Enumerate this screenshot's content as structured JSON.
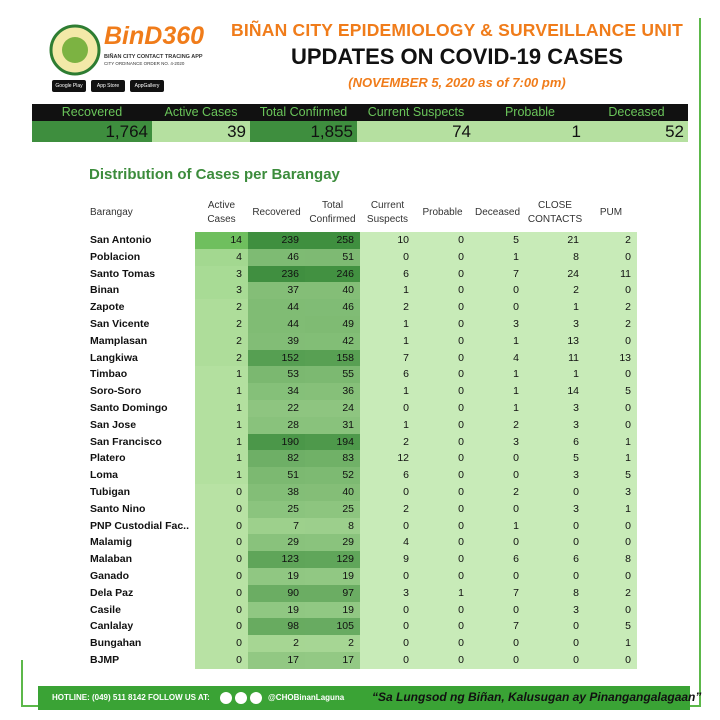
{
  "header": {
    "logo_text": "BinD360",
    "logo_subtitle": "BIÑAN CITY CONTACT TRACING APP",
    "logo_note": "CITY ORDINANCE ORDER NO. 4-2020",
    "badges": [
      "Google Play",
      "App Store",
      "AppGallery"
    ],
    "title": "BIÑAN CITY EPIDEMIOLOGY & SURVEILLANCE UNIT",
    "subtitle": "UPDATES ON COVID-19 CASES",
    "date": "(NOVEMBER 5, 2020 as of 7:00 pm)"
  },
  "summary": [
    {
      "label": "Recovered",
      "value": "1,764"
    },
    {
      "label": "Active Cases",
      "value": "39"
    },
    {
      "label": "Total Confirmed",
      "value": "1,855"
    },
    {
      "label": "Current Suspects",
      "value": "74"
    },
    {
      "label": "Probable",
      "value": "1"
    },
    {
      "label": "Deceased",
      "value": "52"
    }
  ],
  "table": {
    "title": "Distribution of Cases per Barangay",
    "columns": [
      "Barangay",
      "Active Cases",
      "Recovered",
      "Total Confirmed",
      "Current Suspects",
      "Probable",
      "Deceased",
      "CLOSE CONTACTS",
      "PUM"
    ],
    "rows": [
      [
        "San Antonio",
        14,
        239,
        258,
        10,
        0,
        5,
        21,
        2
      ],
      [
        "Poblacion",
        4,
        46,
        51,
        0,
        0,
        1,
        8,
        0
      ],
      [
        "Santo Tomas",
        3,
        236,
        246,
        6,
        0,
        7,
        24,
        11
      ],
      [
        "Binan",
        3,
        37,
        40,
        1,
        0,
        0,
        2,
        0
      ],
      [
        "Zapote",
        2,
        44,
        46,
        2,
        0,
        0,
        1,
        2
      ],
      [
        "San Vicente",
        2,
        44,
        49,
        1,
        0,
        3,
        3,
        2
      ],
      [
        "Mamplasan",
        2,
        39,
        42,
        1,
        0,
        1,
        13,
        0
      ],
      [
        "Langkiwa",
        2,
        152,
        158,
        7,
        0,
        4,
        11,
        13
      ],
      [
        "Timbao",
        1,
        53,
        55,
        6,
        0,
        1,
        1,
        0
      ],
      [
        "Soro-Soro",
        1,
        34,
        36,
        1,
        0,
        1,
        14,
        5
      ],
      [
        "Santo Domingo",
        1,
        22,
        24,
        0,
        0,
        1,
        3,
        0
      ],
      [
        "San Jose",
        1,
        28,
        31,
        1,
        0,
        2,
        3,
        0
      ],
      [
        "San Francisco",
        1,
        190,
        194,
        2,
        0,
        3,
        6,
        1
      ],
      [
        "Platero",
        1,
        82,
        83,
        12,
        0,
        0,
        5,
        1
      ],
      [
        "Loma",
        1,
        51,
        52,
        6,
        0,
        0,
        3,
        5
      ],
      [
        "Tubigan",
        0,
        38,
        40,
        0,
        0,
        2,
        0,
        3
      ],
      [
        "Santo Nino",
        0,
        25,
        25,
        2,
        0,
        0,
        3,
        1
      ],
      [
        "PNP Custodial Fac..",
        0,
        7,
        8,
        0,
        0,
        1,
        0,
        0
      ],
      [
        "Malamig",
        0,
        29,
        29,
        4,
        0,
        0,
        0,
        0
      ],
      [
        "Malaban",
        0,
        123,
        129,
        9,
        0,
        6,
        6,
        8
      ],
      [
        "Ganado",
        0,
        19,
        19,
        0,
        0,
        0,
        0,
        0
      ],
      [
        "Dela Paz",
        0,
        90,
        97,
        3,
        1,
        7,
        8,
        2
      ],
      [
        "Casile",
        0,
        19,
        19,
        0,
        0,
        0,
        3,
        0
      ],
      [
        "Canlalay",
        0,
        98,
        105,
        0,
        0,
        7,
        0,
        5
      ],
      [
        "Bungahan",
        0,
        2,
        2,
        0,
        0,
        0,
        0,
        1
      ],
      [
        "BJMP",
        0,
        17,
        17,
        0,
        0,
        0,
        0,
        0
      ]
    ]
  },
  "footer": {
    "hotline": "HOTLINE: (049) 511 8142",
    "follow": "FOLLOW US AT:",
    "handle": "@CHOBinanLaguna",
    "quote": "“Sa Lungsod ng Biñan, Kalusugan ay Pinangangalagaan”"
  }
}
